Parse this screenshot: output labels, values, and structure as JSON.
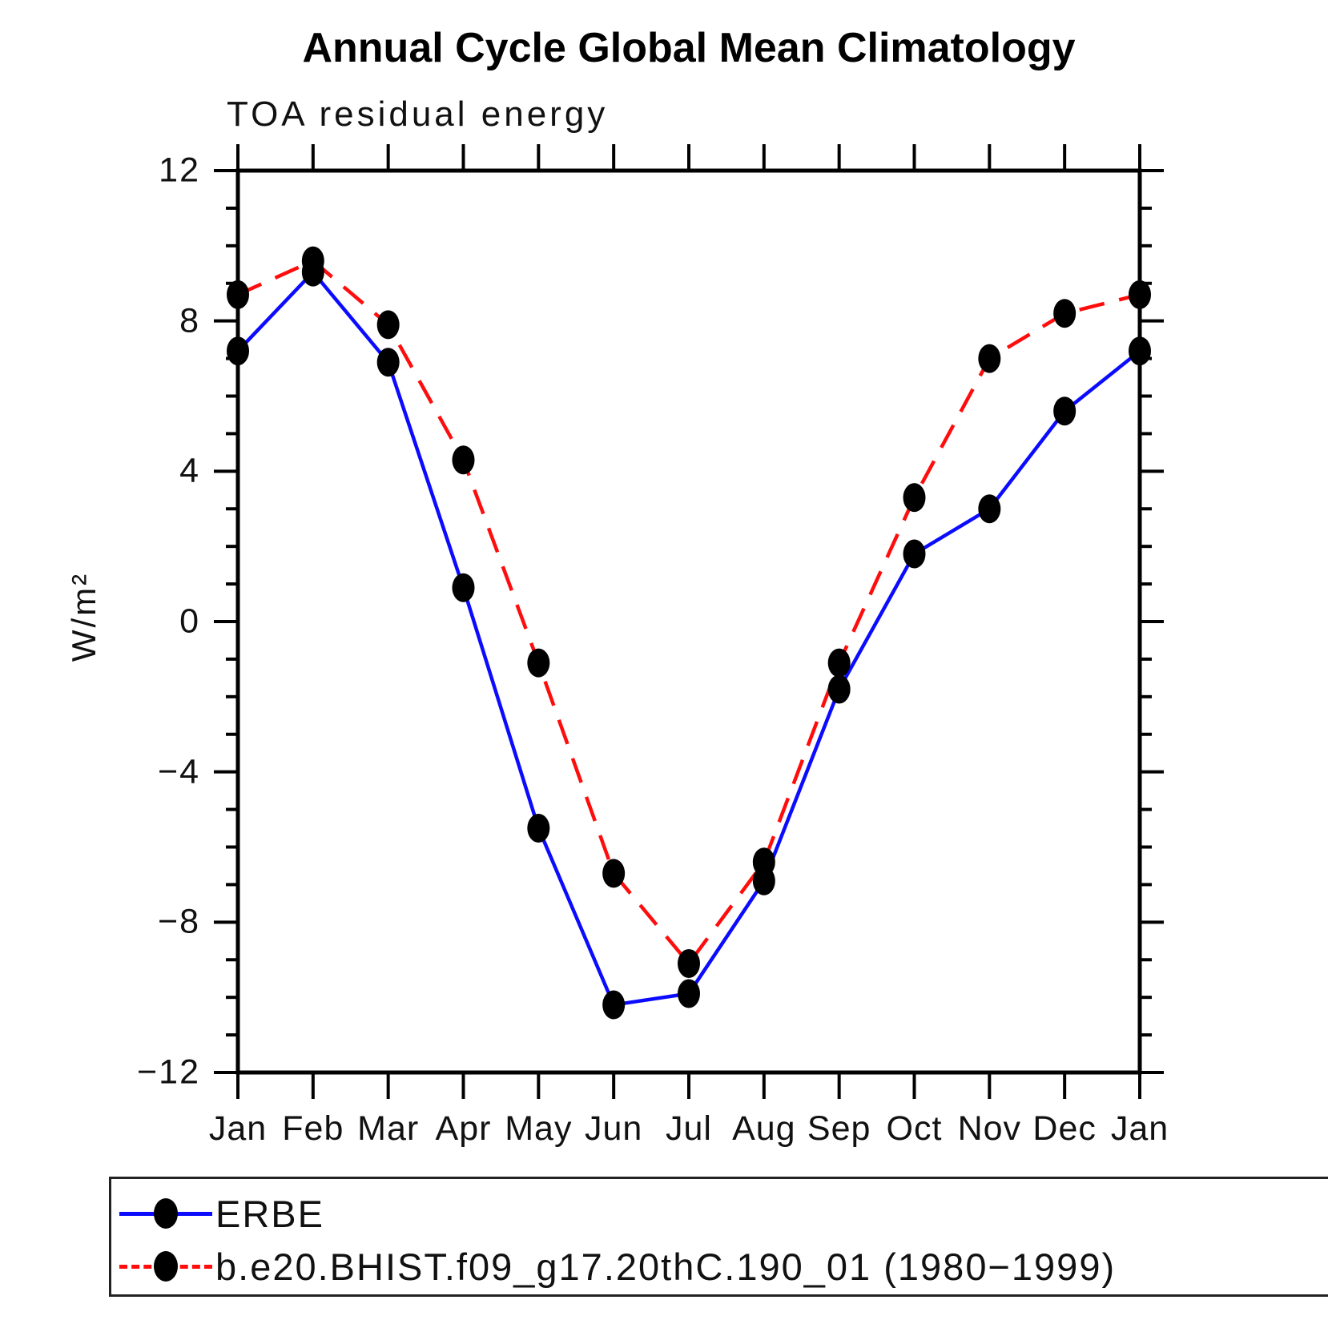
{
  "header": {
    "title": "Annual Cycle Global Mean Climatology",
    "subtitle": "TOA residual energy"
  },
  "axes": {
    "y": {
      "label": "W/m²",
      "ticks": [
        {
          "value": 12,
          "label": "12"
        },
        {
          "value": 8,
          "label": "8"
        },
        {
          "value": 4,
          "label": "4"
        },
        {
          "value": 0,
          "label": "0"
        },
        {
          "value": -4,
          "label": "−4"
        },
        {
          "value": -8,
          "label": "−8"
        },
        {
          "value": -12,
          "label": "−12"
        }
      ],
      "range": [
        -12,
        12
      ],
      "minor_step": 1,
      "major_step": 4
    },
    "x": {
      "tick_labels": [
        "Jan",
        "Feb",
        "Mar",
        "Apr",
        "May",
        "Jun",
        "Jul",
        "Aug",
        "Sep",
        "Oct",
        "Nov",
        "Dec",
        "Jan"
      ]
    }
  },
  "chart_data": {
    "type": "line",
    "title": "Annual Cycle Global Mean Climatology",
    "subtitle": "TOA residual energy",
    "xlabel": "",
    "ylabel": "W/m²",
    "ylim": [
      -12,
      12
    ],
    "grid": false,
    "legend_position": "bottom-outside",
    "categories": [
      "Jan",
      "Feb",
      "Mar",
      "Apr",
      "May",
      "Jun",
      "Jul",
      "Aug",
      "Sep",
      "Oct",
      "Nov",
      "Dec",
      "Jan"
    ],
    "series": [
      {
        "name": "ERBE",
        "color": "#0b0bff",
        "line_style": "solid",
        "marker": "filled-circle",
        "marker_color": "#000000",
        "values": [
          7.2,
          9.3,
          6.9,
          0.9,
          -5.5,
          -10.2,
          -9.9,
          -6.9,
          -1.8,
          1.8,
          3.0,
          5.6,
          7.2
        ]
      },
      {
        "name": "b.e20.BHIST.f09_g17.20thC.190_01 (1980−1999)",
        "color": "#ff0d0d",
        "line_style": "dashed",
        "marker": "filled-circle",
        "marker_color": "#000000",
        "values": [
          8.7,
          9.6,
          7.9,
          4.3,
          -1.1,
          -6.7,
          -9.1,
          -6.4,
          -1.1,
          3.3,
          7.0,
          8.2,
          8.7
        ]
      }
    ]
  },
  "legend": {
    "items": [
      {
        "label": "ERBE",
        "color": "#0b0bff",
        "style": "solid"
      },
      {
        "label": "b.e20.BHIST.f09_g17.20thC.190_01 (1980−1999)",
        "color": "#ff0d0d",
        "style": "dashed"
      }
    ]
  }
}
